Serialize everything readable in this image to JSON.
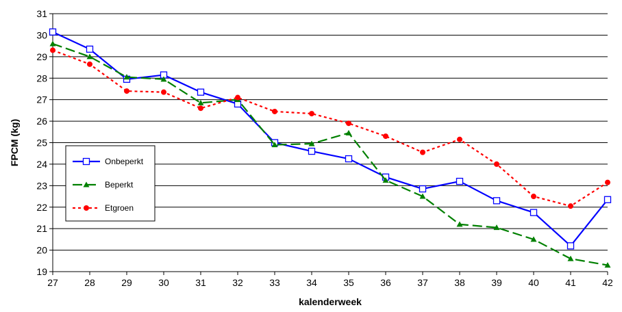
{
  "chart_data": {
    "type": "line",
    "title": "",
    "xlabel": "kalenderweek",
    "ylabel": "FPCM (kg)",
    "x": [
      27,
      28,
      29,
      30,
      31,
      32,
      33,
      34,
      35,
      36,
      37,
      38,
      39,
      40,
      41,
      42
    ],
    "ylim": [
      19,
      31
    ],
    "yticks": [
      19,
      20,
      21,
      22,
      23,
      24,
      25,
      26,
      27,
      28,
      29,
      30,
      31
    ],
    "grid": "horizontal",
    "legend_position": "left",
    "series": [
      {
        "name": "Onbeperkt",
        "color": "#0000ff",
        "marker": "open-square",
        "line": "solid",
        "values": [
          30.15,
          29.35,
          27.95,
          28.15,
          27.35,
          26.8,
          25.0,
          24.6,
          24.25,
          23.4,
          22.85,
          23.2,
          22.3,
          21.75,
          20.2,
          22.35
        ]
      },
      {
        "name": "Beperkt",
        "color": "#008000",
        "marker": "triangle",
        "line": "dashed",
        "values": [
          29.6,
          29.0,
          28.05,
          27.95,
          26.85,
          27.0,
          24.9,
          24.95,
          25.45,
          23.25,
          22.5,
          21.2,
          21.05,
          20.5,
          19.6,
          19.3
        ]
      },
      {
        "name": "Etgroen",
        "color": "#ff0000",
        "marker": "circle",
        "line": "dotted",
        "values": [
          29.3,
          28.65,
          27.4,
          27.35,
          26.6,
          27.1,
          26.45,
          26.35,
          25.9,
          25.3,
          24.55,
          25.15,
          24.0,
          22.5,
          22.05,
          23.15
        ]
      }
    ]
  }
}
